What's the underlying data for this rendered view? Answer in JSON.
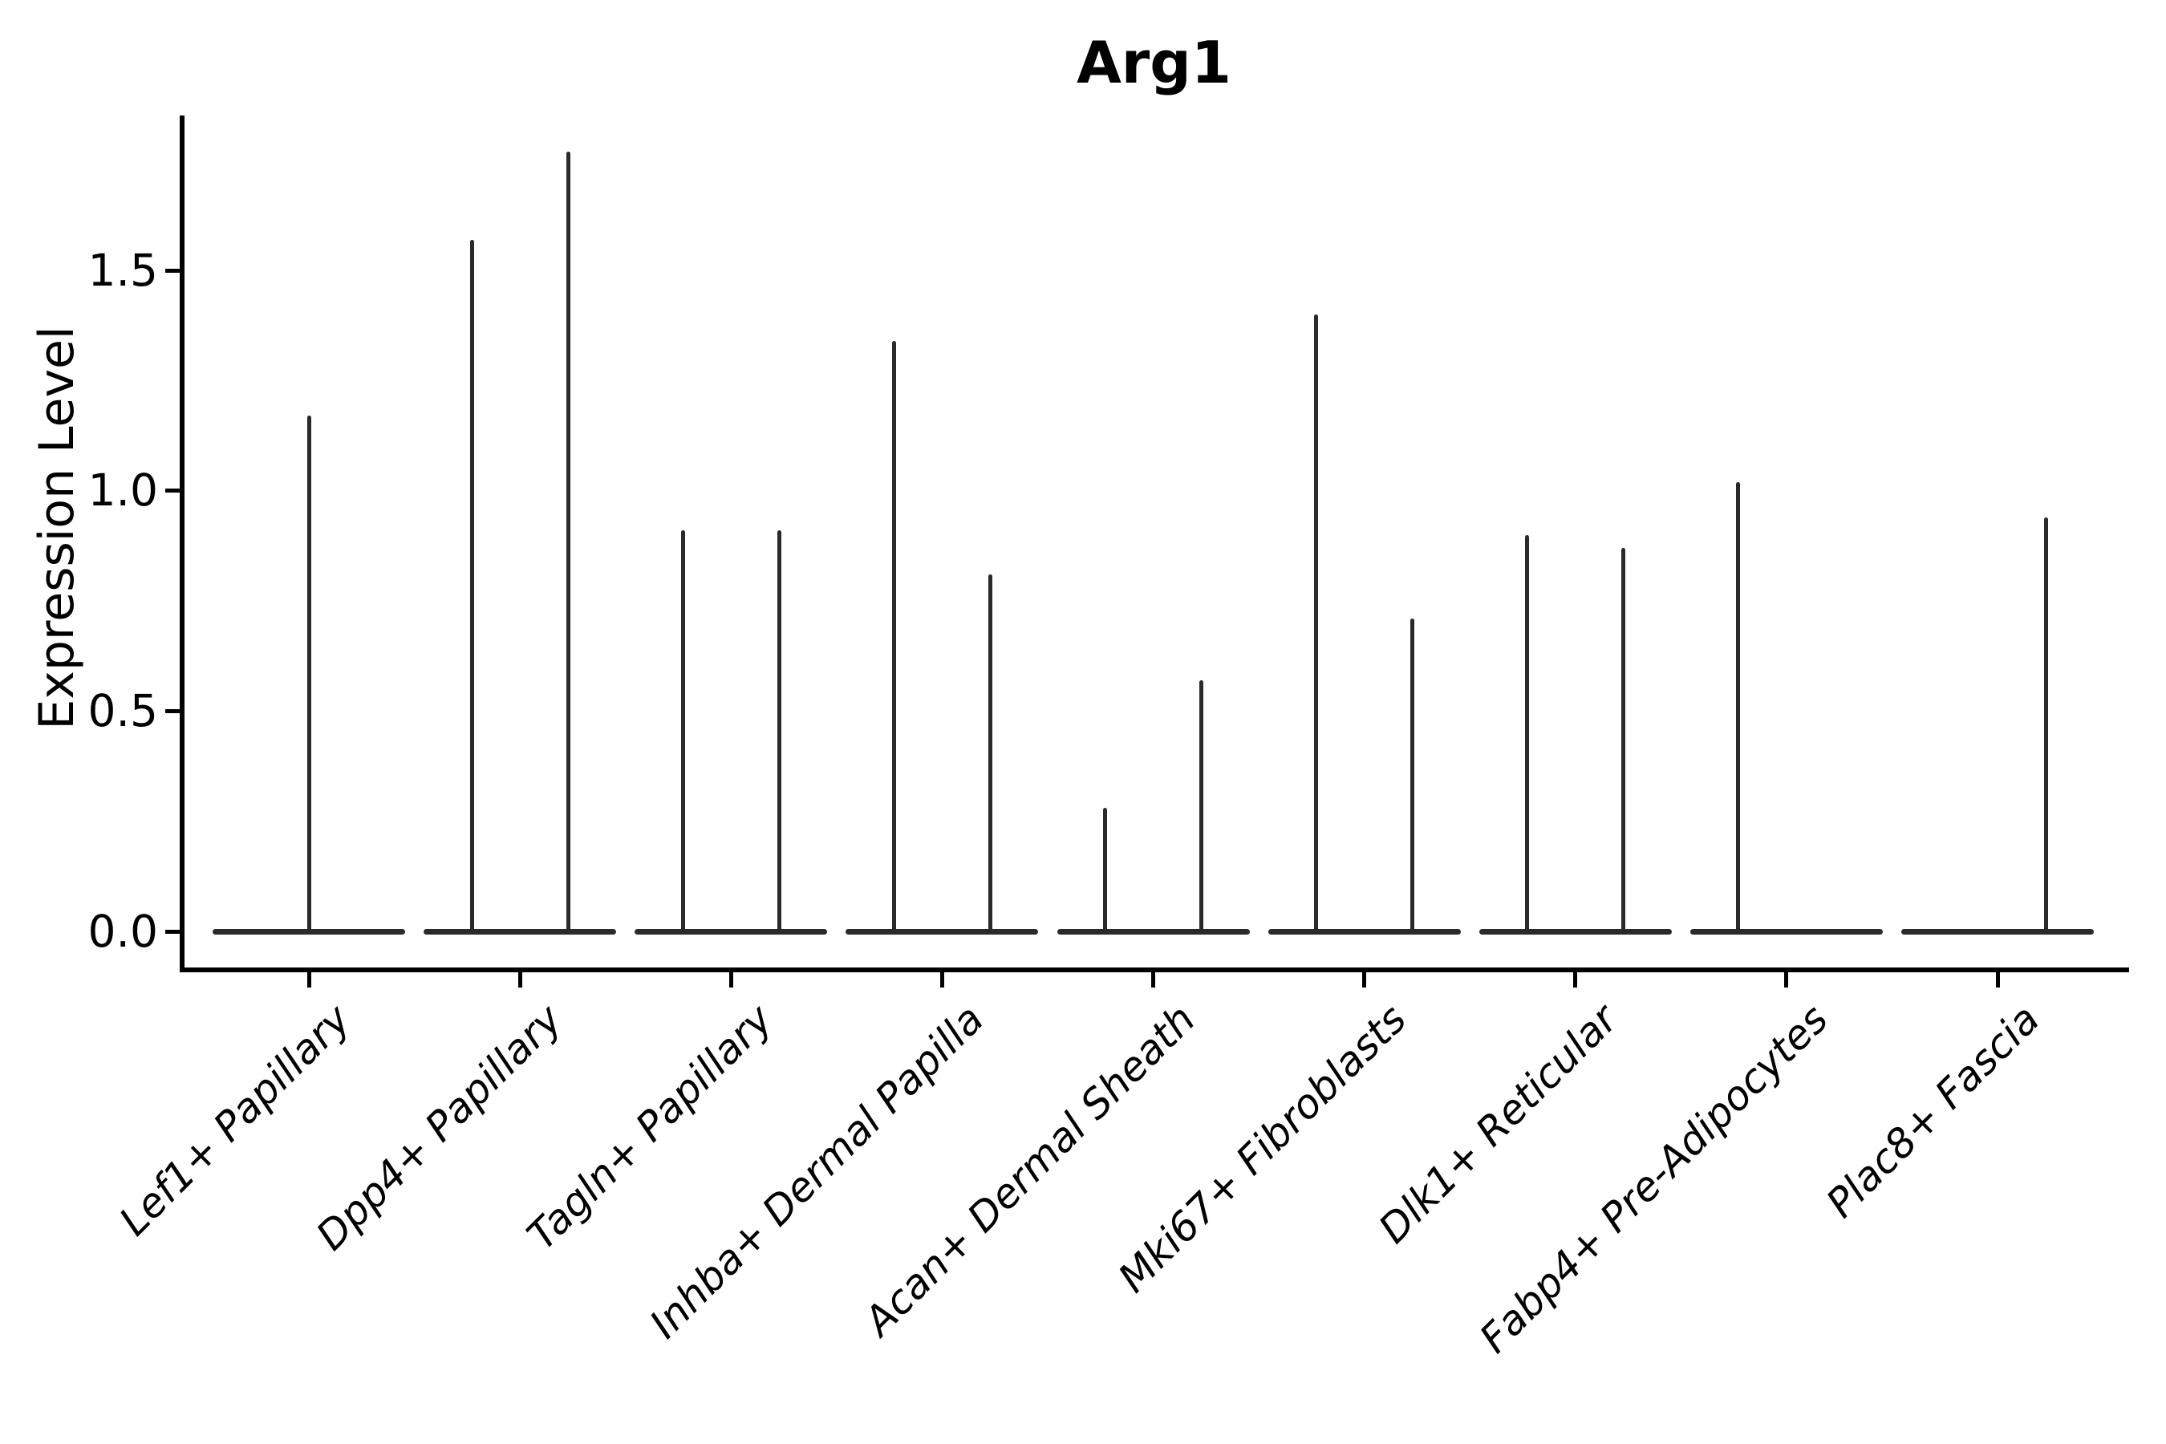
{
  "title": "Arg1",
  "y_axis": {
    "label": "Expression Level",
    "ticks": [
      {
        "label": "0.0",
        "value": 0.0
      },
      {
        "label": "0.5",
        "value": 0.5
      },
      {
        "label": "1.0",
        "value": 1.0
      },
      {
        "label": "1.5",
        "value": 1.5
      }
    ]
  },
  "colors": {
    "violin": "#2a2a2a",
    "spine": "#000000",
    "text": "#000000",
    "background": "#ffffff"
  },
  "chart_data": {
    "type": "violin",
    "title": "Arg1",
    "xlabel": "",
    "ylabel": "Expression Level",
    "ylim": [
      0,
      1.86
    ],
    "yticks": [
      0.0,
      0.5,
      1.0,
      1.5
    ],
    "grid": false,
    "legend": "none",
    "description": "Collapsed violins: wide flat density at 0 per group with thin spike up to the group's maximum expression value. Categories 2-7 contain two side-by-side violins (left/right), category 1 one full-width centered violin, categories 8 and 9 one spiked violin plus an all-zero flat violin.",
    "categories": [
      "Lef1+ Papillary",
      "Dpp4+ Papillary",
      "Tagln+ Papillary",
      "Inhba+ Dermal Papilla",
      "Acan+ Dermal Sheath",
      "Mki67+ Fibroblasts",
      "Dlk1+ Reticular",
      "Fabp4+ Pre-Adipocytes",
      "Plac8+ Fascia"
    ],
    "violins": [
      {
        "category": "Lef1+ Papillary",
        "baseline_value": 0,
        "spikes": [
          {
            "position": "center",
            "max": 1.17
          }
        ]
      },
      {
        "category": "Dpp4+ Papillary",
        "baseline_value": 0,
        "spikes": [
          {
            "position": "left",
            "max": 1.57
          },
          {
            "position": "right",
            "max": 1.77
          }
        ]
      },
      {
        "category": "Tagln+ Papillary",
        "baseline_value": 0,
        "spikes": [
          {
            "position": "left",
            "max": 0.91
          },
          {
            "position": "right",
            "max": 0.91
          }
        ]
      },
      {
        "category": "Inhba+ Dermal Papilla",
        "baseline_value": 0,
        "spikes": [
          {
            "position": "left",
            "max": 1.34
          },
          {
            "position": "right",
            "max": 0.81
          }
        ]
      },
      {
        "category": "Acan+ Dermal Sheath",
        "baseline_value": 0,
        "spikes": [
          {
            "position": "left",
            "max": 0.28
          },
          {
            "position": "right",
            "max": 0.57
          }
        ]
      },
      {
        "category": "Mki67+ Fibroblasts",
        "baseline_value": 0,
        "spikes": [
          {
            "position": "left",
            "max": 1.4
          },
          {
            "position": "right",
            "max": 0.71
          }
        ]
      },
      {
        "category": "Dlk1+ Reticular",
        "baseline_value": 0,
        "spikes": [
          {
            "position": "left",
            "max": 0.9
          },
          {
            "position": "right",
            "max": 0.87
          }
        ]
      },
      {
        "category": "Fabp4+ Pre-Adipocytes",
        "baseline_value": 0,
        "spikes": [
          {
            "position": "left",
            "max": 1.02
          }
        ]
      },
      {
        "category": "Plac8+ Fascia",
        "baseline_value": 0,
        "spikes": [
          {
            "position": "right",
            "max": 0.94
          }
        ]
      }
    ]
  }
}
